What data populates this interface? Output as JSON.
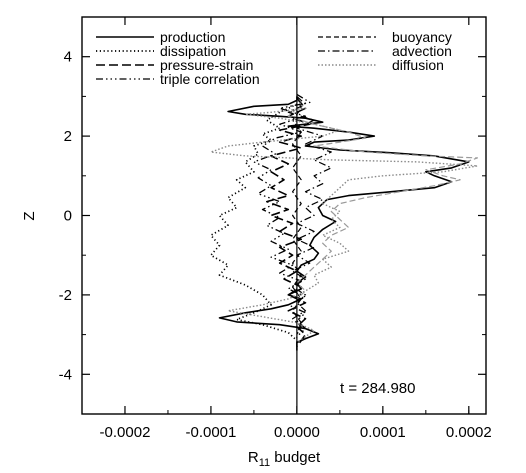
{
  "chart_data": {
    "type": "line",
    "xlabel_main": "R",
    "xlabel_sub": "11",
    "xlabel_rest": " budget",
    "ylabel": "Z",
    "xlim": [
      -0.00025,
      0.00022
    ],
    "ylim": [
      -5,
      5
    ],
    "xticks": [
      -0.0002,
      -0.0001,
      0.0,
      0.0001,
      0.0002
    ],
    "xtick_labels": [
      "-0.0002",
      "-0.0001",
      "0.0000",
      "0.0001",
      "0.0002"
    ],
    "yticks": [
      -4,
      -2,
      0,
      2,
      4
    ],
    "ytick_labels": [
      "-4",
      "-2",
      "0",
      "2",
      "4"
    ],
    "annotation": "t = 284.980",
    "legend_placement": "top",
    "series": [
      {
        "name": "production",
        "color": "#000000",
        "dash": "none",
        "width": 1.6,
        "points": [
          [
            0,
            3.0
          ],
          [
            0,
            2.9
          ],
          [
            -1e-05,
            2.8
          ],
          [
            -5e-05,
            2.75
          ],
          [
            -8e-05,
            2.62
          ],
          [
            -6e-05,
            2.55
          ],
          [
            -2e-05,
            2.5
          ],
          [
            1e-05,
            2.45
          ],
          [
            3e-05,
            2.35
          ],
          [
            -1e-05,
            2.25
          ],
          [
            2e-05,
            2.2
          ],
          [
            6e-05,
            2.1
          ],
          [
            9e-05,
            2.0
          ],
          [
            6e-05,
            1.9
          ],
          [
            2e-05,
            1.85
          ],
          [
            1e-05,
            1.75
          ],
          [
            5e-05,
            1.65
          ],
          [
            0.00011,
            1.58
          ],
          [
            0.00016,
            1.5
          ],
          [
            0.0002,
            1.35
          ],
          [
            0.00018,
            1.2
          ],
          [
            0.00015,
            1.1
          ],
          [
            0.00016,
            1.0
          ],
          [
            0.00018,
            0.85
          ],
          [
            0.00016,
            0.7
          ],
          [
            0.00011,
            0.6
          ],
          [
            6e-05,
            0.5
          ],
          [
            3.5e-05,
            0.4
          ],
          [
            2.5e-05,
            0.2
          ],
          [
            3e-05,
            0.0
          ],
          [
            4.5e-05,
            -0.15
          ],
          [
            3e-05,
            -0.35
          ],
          [
            2e-05,
            -0.55
          ],
          [
            1.5e-05,
            -0.75
          ],
          [
            2.5e-05,
            -0.95
          ],
          [
            2e-05,
            -1.1
          ],
          [
            5e-06,
            -1.25
          ],
          [
            0.0,
            -1.4
          ],
          [
            1e-05,
            -1.55
          ],
          [
            0.0,
            -1.7
          ],
          [
            5e-06,
            -1.85
          ],
          [
            -1e-05,
            -2.0
          ],
          [
            5e-06,
            -2.1
          ],
          [
            -1e-05,
            -2.25
          ],
          [
            -3e-05,
            -2.35
          ],
          [
            -6e-05,
            -2.45
          ],
          [
            -9e-05,
            -2.58
          ],
          [
            -7e-05,
            -2.68
          ],
          [
            -2e-05,
            -2.75
          ],
          [
            1e-05,
            -2.85
          ],
          [
            2.5e-05,
            -2.98
          ],
          [
            1e-05,
            -3.1
          ],
          [
            0.0,
            -3.2
          ],
          [
            0,
            -3.4
          ]
        ]
      },
      {
        "name": "dissipation",
        "color": "#000000",
        "dash": "1.2,2.6",
        "width": 1.7,
        "points": [
          [
            0,
            2.8
          ],
          [
            -2e-05,
            2.6
          ],
          [
            -3.5e-05,
            2.4
          ],
          [
            -2e-05,
            2.2
          ],
          [
            -4e-05,
            2.05
          ],
          [
            -3e-05,
            1.9
          ],
          [
            -5e-05,
            1.75
          ],
          [
            -4.5e-05,
            1.55
          ],
          [
            -6e-05,
            1.35
          ],
          [
            -5e-05,
            1.1
          ],
          [
            -7e-05,
            0.9
          ],
          [
            -6e-05,
            0.7
          ],
          [
            -8e-05,
            0.45
          ],
          [
            -7e-05,
            0.2
          ],
          [
            -9e-05,
            0.0
          ],
          [
            -8e-05,
            -0.25
          ],
          [
            -0.0001,
            -0.5
          ],
          [
            -9e-05,
            -0.75
          ],
          [
            -0.0001,
            -1.0
          ],
          [
            -8e-05,
            -1.25
          ],
          [
            -9e-05,
            -1.5
          ],
          [
            -6e-05,
            -1.75
          ],
          [
            -4e-05,
            -2.0
          ],
          [
            -3e-05,
            -2.25
          ],
          [
            -5e-05,
            -2.45
          ],
          [
            -7e-05,
            -2.62
          ],
          [
            -4e-05,
            -2.75
          ],
          [
            -1e-05,
            -2.95
          ],
          [
            0,
            -3.15
          ]
        ]
      },
      {
        "name": "pressure-strain",
        "color": "#000000",
        "dash": "9,4",
        "width": 1.6,
        "points": [
          [
            0,
            2.95
          ],
          [
            1e-05,
            2.7
          ],
          [
            -1e-05,
            2.5
          ],
          [
            1.5e-05,
            2.3
          ],
          [
            -2e-05,
            2.15
          ],
          [
            5e-06,
            2.0
          ],
          [
            -2e-05,
            1.85
          ],
          [
            5e-06,
            1.7
          ],
          [
            -3e-05,
            1.5
          ],
          [
            -1e-05,
            1.3
          ],
          [
            -3e-05,
            1.1
          ],
          [
            -1.5e-05,
            0.9
          ],
          [
            -3e-05,
            0.7
          ],
          [
            -1e-05,
            0.5
          ],
          [
            -3.5e-05,
            0.35
          ],
          [
            -1e-05,
            0.15
          ],
          [
            -3e-05,
            0.0
          ],
          [
            -5e-06,
            -0.2
          ],
          [
            -2e-05,
            -0.4
          ],
          [
            5e-06,
            -0.6
          ],
          [
            -2e-05,
            -0.8
          ],
          [
            -5e-06,
            -1.0
          ],
          [
            -2e-05,
            -1.2
          ],
          [
            0.0,
            -1.4
          ],
          [
            -1.5e-05,
            -1.6
          ],
          [
            5e-06,
            -1.8
          ],
          [
            -1e-05,
            -2.0
          ],
          [
            1e-05,
            -2.2
          ],
          [
            -1e-05,
            -2.4
          ],
          [
            1e-05,
            -2.6
          ],
          [
            0.0,
            -2.8
          ],
          [
            1e-05,
            -3.0
          ],
          [
            0,
            -3.3
          ]
        ]
      },
      {
        "name": "triple correlation",
        "color": "#000000",
        "dash": "7,3,1.5,3,1.5,3,1.5,3",
        "width": 1.3,
        "points": [
          [
            0,
            3.05
          ],
          [
            1.5e-05,
            2.85
          ],
          [
            -2e-05,
            2.7
          ],
          [
            1e-05,
            2.5
          ],
          [
            -2e-05,
            2.3
          ],
          [
            5e-06,
            2.1
          ],
          [
            -2.5e-05,
            1.95
          ],
          [
            -4e-05,
            1.75
          ],
          [
            -2.5e-05,
            1.55
          ],
          [
            -5e-05,
            1.35
          ],
          [
            -3e-05,
            1.15
          ],
          [
            -4.5e-05,
            0.95
          ],
          [
            -3e-05,
            0.75
          ],
          [
            -4.5e-05,
            0.55
          ],
          [
            -2e-05,
            0.35
          ],
          [
            -4e-05,
            0.15
          ],
          [
            -2e-05,
            -0.05
          ],
          [
            -3.5e-05,
            -0.25
          ],
          [
            -1.5e-05,
            -0.45
          ],
          [
            -3e-05,
            -0.65
          ],
          [
            -1e-05,
            -0.85
          ],
          [
            -3e-05,
            -1.05
          ],
          [
            -5e-06,
            -1.25
          ],
          [
            -2e-05,
            -1.45
          ],
          [
            5e-06,
            -1.65
          ],
          [
            -1e-05,
            -1.85
          ],
          [
            1e-05,
            -2.05
          ],
          [
            -1e-05,
            -2.25
          ],
          [
            1e-05,
            -2.45
          ],
          [
            0.0,
            -2.65
          ],
          [
            1e-05,
            -2.85
          ],
          [
            0.0,
            -3.05
          ],
          [
            0,
            -3.3
          ]
        ]
      },
      {
        "name": "buoyancy",
        "color": "#000000",
        "dash": "5,3",
        "width": 1.2,
        "points": [
          [
            0,
            3.0
          ],
          [
            5e-06,
            2.7
          ],
          [
            -5e-06,
            2.4
          ],
          [
            5e-06,
            2.1
          ],
          [
            -5e-06,
            1.8
          ],
          [
            5e-06,
            1.5
          ],
          [
            -5e-06,
            1.2
          ],
          [
            5e-06,
            0.9
          ],
          [
            -5e-06,
            0.6
          ],
          [
            5e-06,
            0.3
          ],
          [
            -5e-06,
            0.0
          ],
          [
            5e-06,
            -0.3
          ],
          [
            -5e-06,
            -0.6
          ],
          [
            5e-06,
            -0.9
          ],
          [
            -5e-06,
            -1.2
          ],
          [
            5e-06,
            -1.5
          ],
          [
            -5e-06,
            -1.8
          ],
          [
            5e-06,
            -2.1
          ],
          [
            -5e-06,
            -2.4
          ],
          [
            5e-06,
            -2.7
          ],
          [
            0,
            -3.0
          ]
        ]
      },
      {
        "name": "advection",
        "color": "#000000",
        "dash": "7,3,1.5,3",
        "width": 1.2,
        "points": [
          [
            0,
            3.0
          ],
          [
            1e-05,
            2.8
          ],
          [
            -1e-05,
            2.6
          ],
          [
            2e-05,
            2.4
          ],
          [
            0.0,
            2.2
          ],
          [
            3e-05,
            2.0
          ],
          [
            1e-05,
            1.8
          ],
          [
            4e-05,
            1.6
          ],
          [
            2e-05,
            1.4
          ],
          [
            4e-05,
            1.2
          ],
          [
            2e-05,
            1.0
          ],
          [
            3e-05,
            0.8
          ],
          [
            1e-05,
            0.6
          ],
          [
            3e-05,
            0.4
          ],
          [
            1e-05,
            0.2
          ],
          [
            2e-05,
            0.0
          ],
          [
            0.0,
            -0.2
          ],
          [
            2e-05,
            -0.4
          ],
          [
            0.0,
            -0.6
          ],
          [
            2e-05,
            -0.8
          ],
          [
            0.0,
            -1.0
          ],
          [
            1.5e-05,
            -1.2
          ],
          [
            -5e-06,
            -1.4
          ],
          [
            1e-05,
            -1.6
          ],
          [
            -5e-06,
            -1.8
          ],
          [
            1e-05,
            -2.0
          ],
          [
            0.0,
            -2.2
          ],
          [
            1e-05,
            -2.4
          ],
          [
            -5e-06,
            -2.6
          ],
          [
            5e-06,
            -2.8
          ],
          [
            0,
            -3.0
          ]
        ]
      },
      {
        "name": "diffusion",
        "color": "#8a8a8a",
        "dash": "1.5,2",
        "width": 1.4,
        "points": [
          [
            0,
            2.9
          ],
          [
            1e-05,
            2.7
          ],
          [
            -3e-05,
            2.6
          ],
          [
            -6e-05,
            2.55
          ],
          [
            -2e-05,
            2.45
          ],
          [
            2e-05,
            2.3
          ],
          [
            5e-05,
            2.15
          ],
          [
            3e-05,
            2.0
          ],
          [
            -4e-05,
            1.85
          ],
          [
            -8e-05,
            1.75
          ],
          [
            -0.0001,
            1.6
          ],
          [
            -6e-05,
            1.5
          ],
          [
            4e-05,
            1.4
          ],
          [
            0.00014,
            1.35
          ],
          [
            0.00021,
            1.25
          ],
          [
            0.00017,
            1.1
          ],
          [
            0.0001,
            1.0
          ],
          [
            6e-05,
            0.9
          ],
          [
            5e-05,
            0.7
          ],
          [
            4e-05,
            0.5
          ],
          [
            3e-05,
            0.3
          ],
          [
            5e-05,
            0.1
          ],
          [
            4e-05,
            -0.1
          ],
          [
            5e-05,
            -0.3
          ],
          [
            3e-05,
            -0.5
          ],
          [
            5e-05,
            -0.7
          ],
          [
            6e-05,
            -0.9
          ],
          [
            3e-05,
            -1.1
          ],
          [
            4e-05,
            -1.3
          ],
          [
            2e-05,
            -1.5
          ],
          [
            2.5e-05,
            -1.7
          ],
          [
            1e-05,
            -1.9
          ],
          [
            -1e-05,
            -2.1
          ],
          [
            -4e-05,
            -2.25
          ],
          [
            -8e-05,
            -2.4
          ],
          [
            -4e-05,
            -2.55
          ],
          [
            0.0,
            -2.7
          ],
          [
            2e-05,
            -2.9
          ],
          [
            0,
            -3.2
          ]
        ]
      },
      {
        "name": "",
        "color": "#9a9a9a",
        "dash": "6,3",
        "width": 1.2,
        "points": [
          [
            0,
            2.7
          ],
          [
            -1e-05,
            2.5
          ],
          [
            2e-05,
            2.3
          ],
          [
            6e-05,
            2.1
          ],
          [
            8e-05,
            1.95
          ],
          [
            5e-05,
            1.85
          ],
          [
            2e-05,
            1.75
          ],
          [
            8e-05,
            1.6
          ],
          [
            0.00015,
            1.5
          ],
          [
            0.00021,
            1.45
          ],
          [
            0.00019,
            1.3
          ],
          [
            0.00015,
            1.15
          ],
          [
            0.00017,
            1.0
          ],
          [
            0.00019,
            0.9
          ],
          [
            0.00016,
            0.75
          ],
          [
            0.00012,
            0.6
          ],
          [
            8e-05,
            0.45
          ],
          [
            5e-05,
            0.3
          ],
          [
            4e-05,
            0.1
          ],
          [
            5e-05,
            -0.1
          ],
          [
            6e-05,
            -0.3
          ],
          [
            4e-05,
            -0.5
          ],
          [
            3e-05,
            -0.7
          ],
          [
            4e-05,
            -0.9
          ],
          [
            3e-05,
            -1.1
          ],
          [
            2e-05,
            -1.3
          ],
          [
            1e-05,
            -1.5
          ],
          [
            0.0,
            -1.7
          ],
          [
            1e-05,
            -1.9
          ],
          [
            0,
            -2.1
          ]
        ]
      }
    ]
  }
}
